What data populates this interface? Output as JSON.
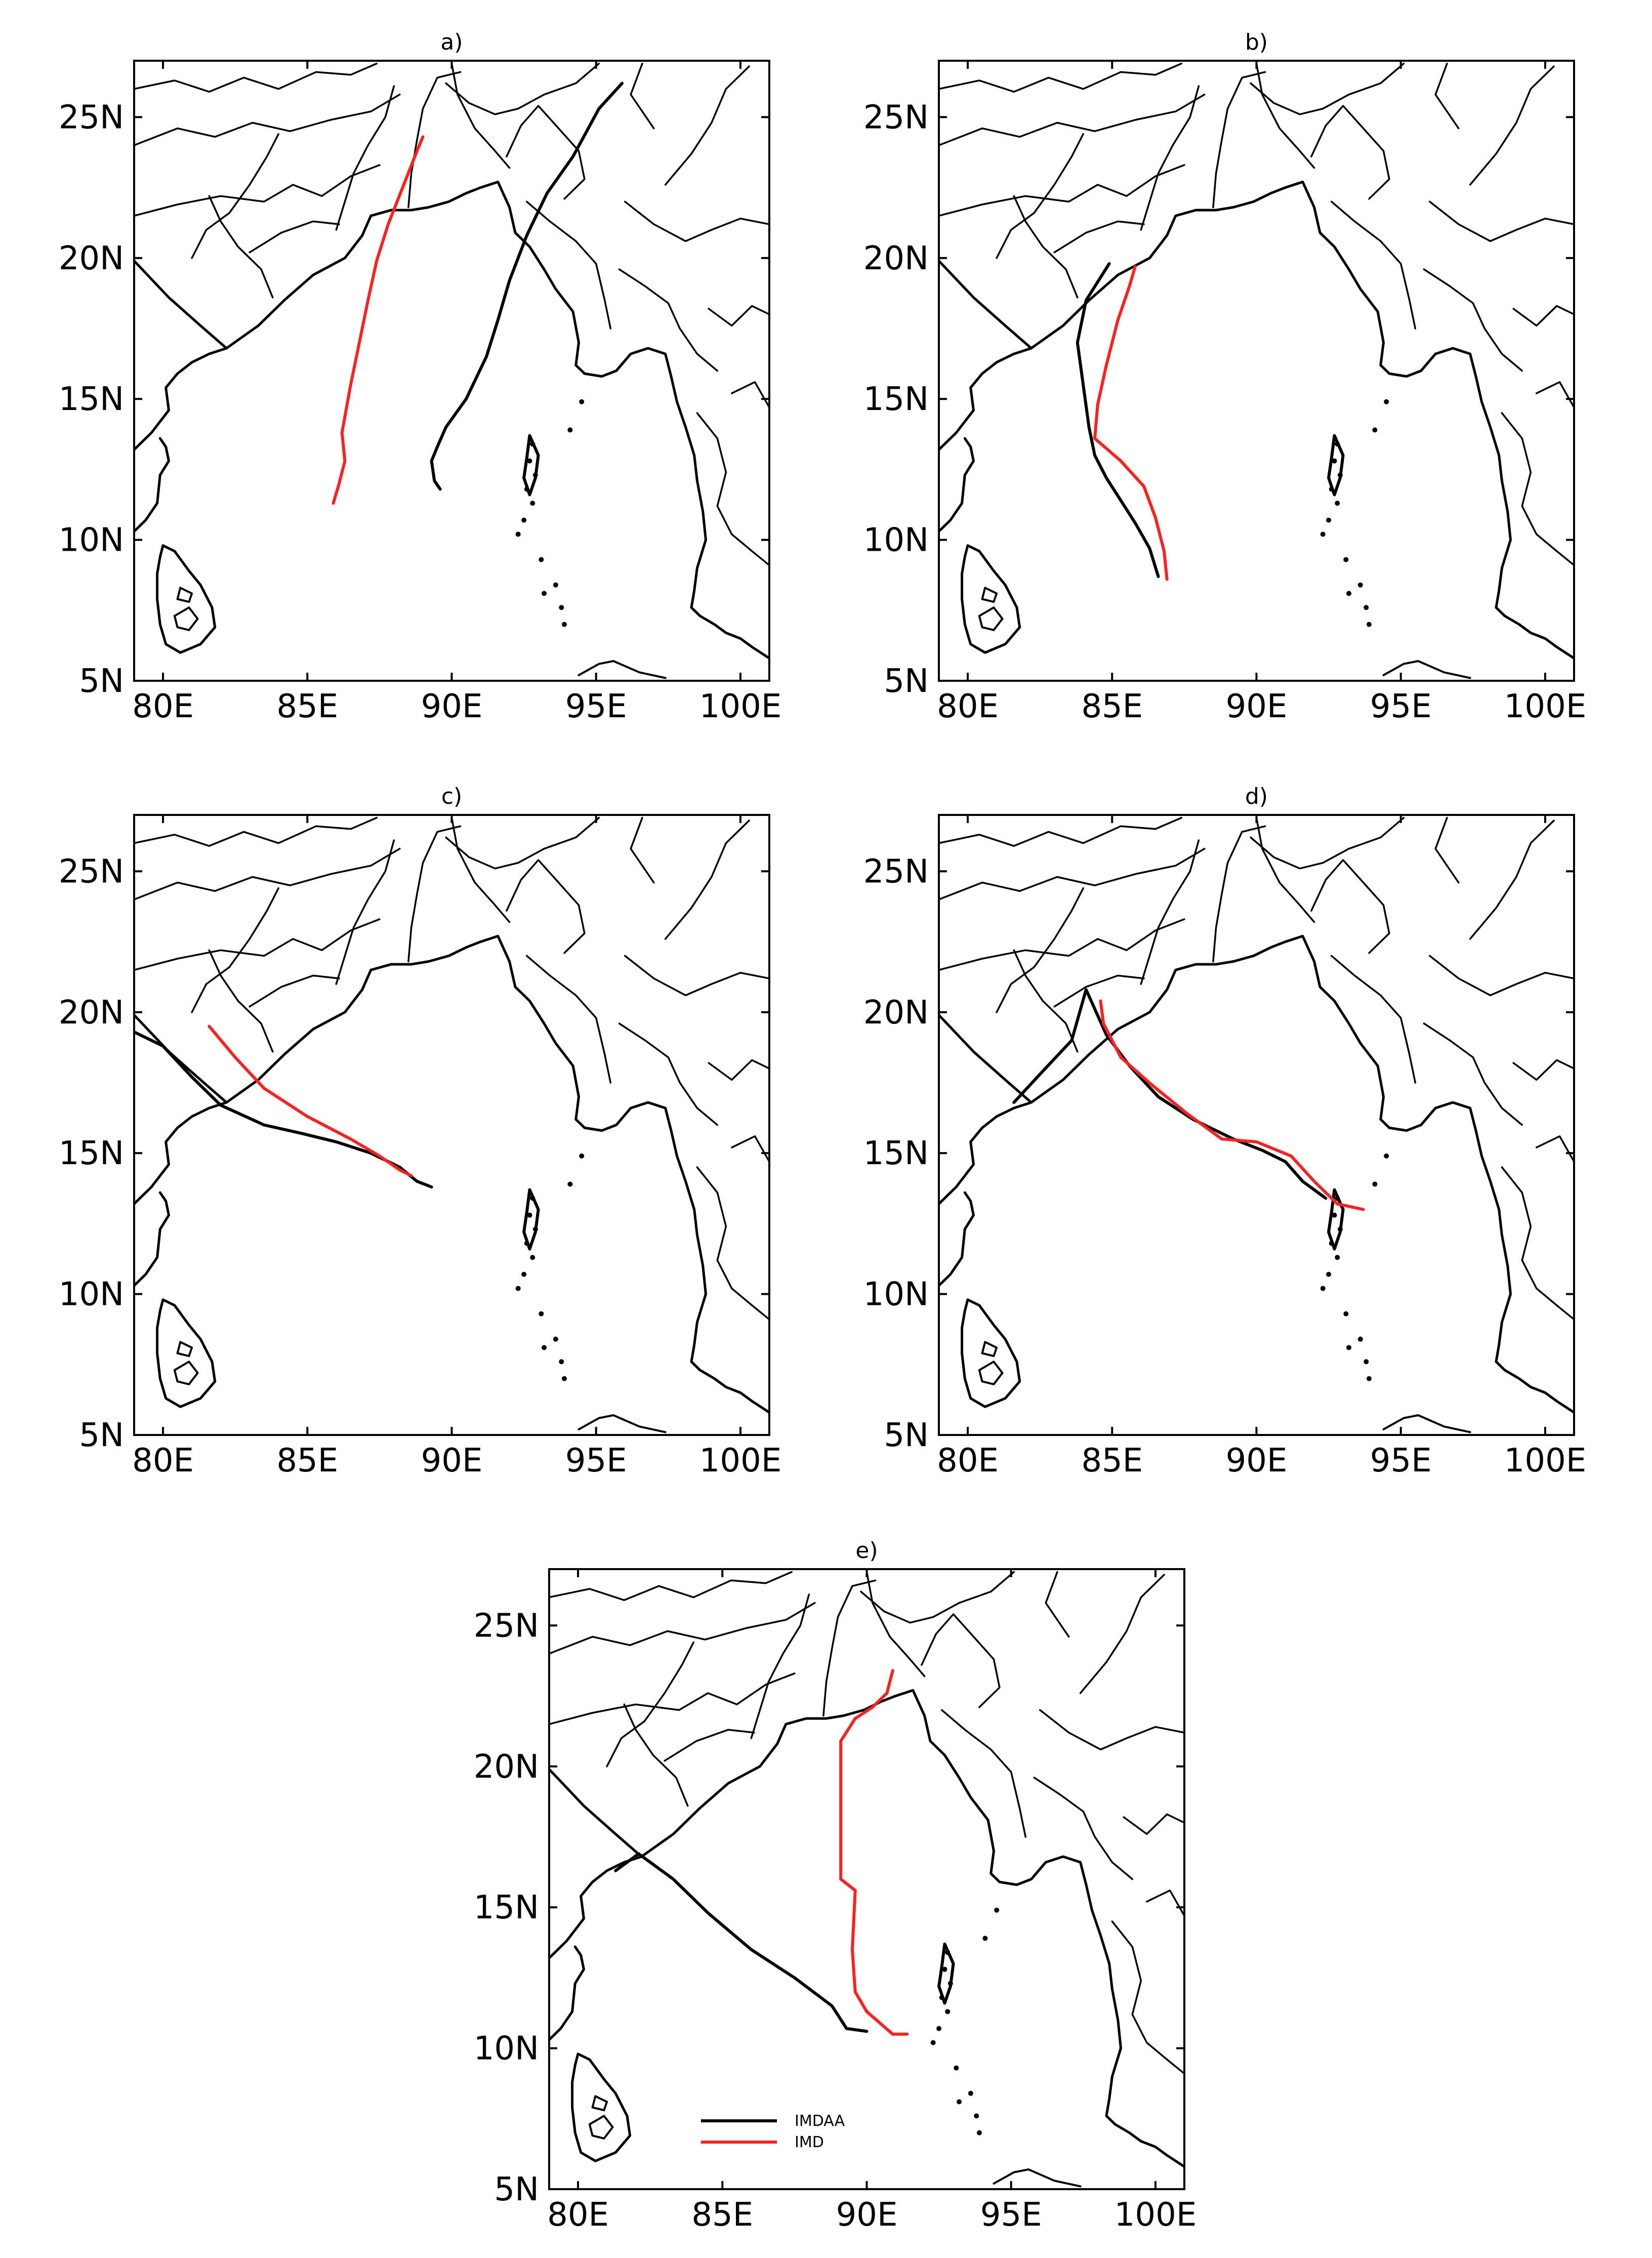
{
  "panels": [
    {
      "title": "a)"
    },
    {
      "title": "b)"
    },
    {
      "title": "c)"
    },
    {
      "title": "d)"
    },
    {
      "title": "e)"
    }
  ],
  "axes": {
    "x_ticks": [
      "80E",
      "85E",
      "90E",
      "95E",
      "100E"
    ],
    "y_ticks": [
      "5N",
      "10N",
      "15N",
      "20N",
      "25N"
    ],
    "lon_range": [
      79,
      101
    ],
    "lat_range": [
      5,
      27
    ]
  },
  "legend": {
    "items": [
      {
        "label": "IMDAA",
        "color": "#000000"
      },
      {
        "label": "IMD",
        "color": "#ff2020"
      }
    ]
  },
  "chart_data": {
    "type": "map",
    "projection": "lon-lat",
    "xlim": [
      79,
      101
    ],
    "ylim": [
      5,
      27
    ],
    "panels": [
      {
        "title": "a)",
        "tracks": {
          "IMDAA": [
            [
              89.6,
              11.8
            ],
            [
              89.4,
              12.1
            ],
            [
              89.3,
              12.8
            ],
            [
              89.5,
              13.3
            ],
            [
              89.8,
              14.0
            ],
            [
              90.5,
              15.0
            ],
            [
              91.2,
              16.5
            ],
            [
              91.6,
              17.8
            ],
            [
              92.0,
              19.2
            ],
            [
              92.6,
              20.8
            ],
            [
              93.3,
              22.3
            ],
            [
              94.2,
              23.6
            ],
            [
              95.1,
              25.3
            ],
            [
              95.9,
              26.2
            ]
          ],
          "IMD": [
            [
              85.9,
              11.3
            ],
            [
              86.1,
              12.0
            ],
            [
              86.3,
              12.8
            ],
            [
              86.2,
              13.8
            ],
            [
              86.5,
              15.5
            ],
            [
              86.8,
              17.0
            ],
            [
              87.1,
              18.5
            ],
            [
              87.4,
              19.9
            ],
            [
              87.8,
              21.2
            ],
            [
              88.3,
              22.5
            ],
            [
              88.8,
              23.8
            ],
            [
              89.0,
              24.3
            ]
          ]
        }
      },
      {
        "title": "b)",
        "tracks": {
          "IMDAA": [
            [
              86.6,
              8.7
            ],
            [
              86.3,
              9.7
            ],
            [
              85.8,
              10.6
            ],
            [
              85.3,
              11.4
            ],
            [
              84.8,
              12.2
            ],
            [
              84.4,
              13.0
            ],
            [
              84.2,
              14.0
            ],
            [
              84.0,
              15.5
            ],
            [
              83.8,
              17.0
            ],
            [
              84.1,
              18.5
            ],
            [
              84.9,
              19.8
            ]
          ],
          "IMD": [
            [
              86.9,
              8.6
            ],
            [
              86.8,
              9.6
            ],
            [
              86.5,
              10.8
            ],
            [
              86.1,
              11.9
            ],
            [
              85.3,
              12.8
            ],
            [
              84.4,
              13.6
            ],
            [
              84.5,
              14.8
            ],
            [
              84.8,
              16.2
            ],
            [
              85.2,
              17.8
            ],
            [
              85.6,
              19.0
            ],
            [
              85.8,
              19.7
            ]
          ]
        }
      },
      {
        "title": "c)",
        "tracks": {
          "IMDAA": [
            [
              89.3,
              13.8
            ],
            [
              88.8,
              14.0
            ],
            [
              88.2,
              14.5
            ],
            [
              87.2,
              15.0
            ],
            [
              86.0,
              15.4
            ],
            [
              84.8,
              15.7
            ],
            [
              83.5,
              16.0
            ],
            [
              82.0,
              16.7
            ],
            [
              81.0,
              17.7
            ],
            [
              80.0,
              18.8
            ],
            [
              79.0,
              19.3
            ]
          ],
          "IMD": [
            [
              88.6,
              14.2
            ],
            [
              88.2,
              14.4
            ],
            [
              87.5,
              14.9
            ],
            [
              86.5,
              15.5
            ],
            [
              85.0,
              16.3
            ],
            [
              83.5,
              17.3
            ],
            [
              82.5,
              18.4
            ],
            [
              81.6,
              19.5
            ]
          ]
        }
      },
      {
        "title": "d)",
        "tracks": {
          "IMDAA": [
            [
              92.4,
              13.4
            ],
            [
              91.6,
              14.0
            ],
            [
              91.0,
              14.7
            ],
            [
              90.2,
              15.1
            ],
            [
              89.2,
              15.5
            ],
            [
              87.8,
              16.2
            ],
            [
              86.6,
              17.0
            ],
            [
              85.6,
              18.1
            ],
            [
              84.8,
              19.2
            ],
            [
              84.1,
              20.8
            ],
            [
              83.6,
              19.0
            ],
            [
              82.5,
              17.8
            ],
            [
              81.6,
              16.8
            ]
          ],
          "IMD": [
            [
              93.7,
              13.0
            ],
            [
              92.8,
              13.2
            ],
            [
              92.0,
              14.0
            ],
            [
              91.2,
              14.9
            ],
            [
              90.0,
              15.4
            ],
            [
              88.8,
              15.5
            ],
            [
              87.6,
              16.4
            ],
            [
              86.4,
              17.4
            ],
            [
              85.3,
              18.4
            ],
            [
              84.7,
              19.6
            ],
            [
              84.6,
              20.4
            ]
          ]
        }
      },
      {
        "title": "e)",
        "tracks": {
          "IMDAA": [
            [
              90.0,
              10.6
            ],
            [
              89.3,
              10.7
            ],
            [
              88.8,
              11.5
            ],
            [
              87.5,
              12.5
            ],
            [
              86.0,
              13.5
            ],
            [
              84.5,
              14.8
            ],
            [
              83.3,
              16.0
            ],
            [
              82.1,
              16.9
            ],
            [
              81.3,
              16.3
            ]
          ],
          "IMD": [
            [
              91.4,
              10.5
            ],
            [
              90.9,
              10.5
            ],
            [
              90.0,
              11.3
            ],
            [
              89.6,
              12.0
            ],
            [
              89.5,
              13.5
            ],
            [
              89.6,
              15.6
            ],
            [
              89.1,
              16.0
            ],
            [
              89.1,
              18.5
            ],
            [
              89.1,
              20.9
            ],
            [
              89.6,
              21.7
            ],
            [
              90.2,
              22.1
            ],
            [
              90.7,
              22.6
            ],
            [
              90.9,
              23.4
            ]
          ]
        }
      }
    ]
  }
}
